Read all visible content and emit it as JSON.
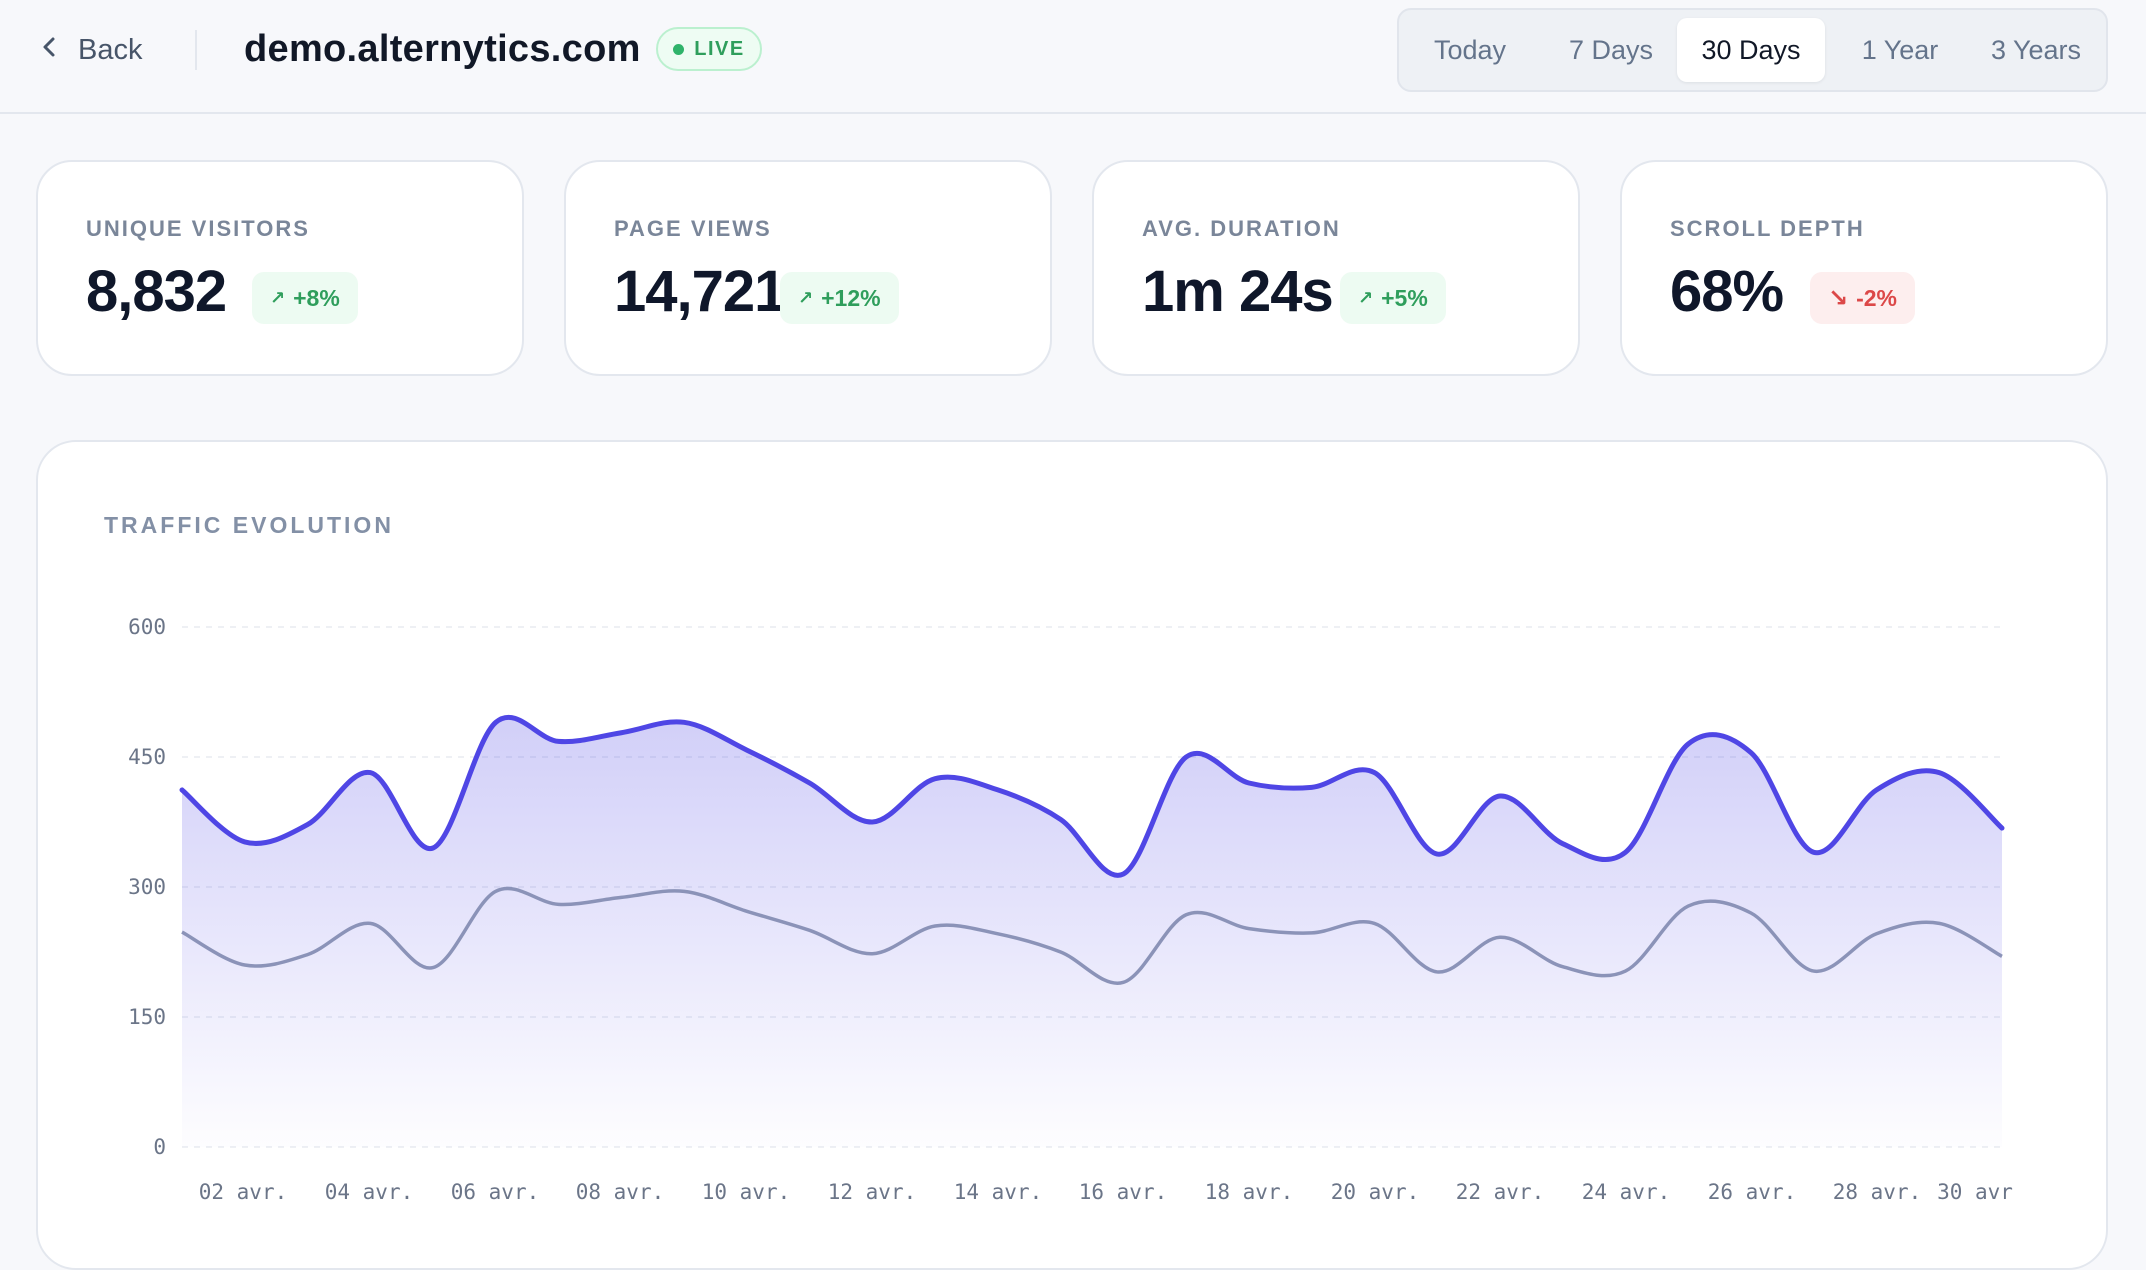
{
  "header": {
    "back_label": "Back",
    "site": "demo.alternytics.com",
    "live_label": "LIVE",
    "ranges": [
      "Today",
      "7 Days",
      "30 Days",
      "1 Year",
      "3 Years"
    ],
    "active_range": "30 Days"
  },
  "stats": [
    {
      "label": "UNIQUE VISITORS",
      "value": "8,832",
      "change": "+8%",
      "trend": "up"
    },
    {
      "label": "PAGE VIEWS",
      "value": "14,721",
      "change": "+12%",
      "trend": "up"
    },
    {
      "label": "AVG. DURATION",
      "value": "1m 24s",
      "change": "+5%",
      "trend": "up"
    },
    {
      "label": "SCROLL DEPTH",
      "value": "68%",
      "change": "-2%",
      "trend": "down"
    }
  ],
  "colors": {
    "accent": "#4f46e5",
    "secondary_line": "#8b93b8",
    "up": "#2f9e5c",
    "down": "#dc4848"
  },
  "icons": {
    "back": "chevron-left-icon",
    "trend_up": "arrow-up-right-icon",
    "trend_down": "arrow-down-right-icon"
  },
  "chart_data": {
    "type": "area",
    "title": "TRAFFIC EVOLUTION",
    "ylim": [
      0,
      600
    ],
    "yticks": [
      0,
      150,
      300,
      450,
      600
    ],
    "grid": true,
    "x_labels": [
      "02 avr.",
      "04 avr.",
      "06 avr.",
      "08 avr.",
      "10 avr.",
      "12 avr.",
      "14 avr.",
      "16 avr.",
      "18 avr.",
      "20 avr.",
      "22 avr.",
      "24 avr.",
      "26 avr.",
      "28 avr.",
      "30 avr"
    ],
    "x": [
      "01 avr.",
      "02 avr.",
      "03 avr.",
      "04 avr.",
      "05 avr.",
      "06 avr.",
      "07 avr.",
      "08 avr.",
      "09 avr.",
      "10 avr.",
      "11 avr.",
      "12 avr.",
      "13 avr.",
      "14 avr.",
      "15 avr.",
      "16 avr.",
      "17 avr.",
      "18 avr.",
      "19 avr.",
      "20 avr.",
      "21 avr.",
      "22 avr.",
      "23 avr.",
      "24 avr.",
      "25 avr.",
      "26 avr.",
      "27 avr.",
      "28 avr.",
      "29 avr.",
      "30 avr"
    ],
    "series": [
      {
        "values": [
          412,
          352,
          372,
          432,
          345,
          490,
          468,
          478,
          490,
          458,
          420,
          375,
          425,
          412,
          378,
          315,
          450,
          420,
          415,
          432,
          338,
          405,
          350,
          340,
          465,
          455,
          340,
          412,
          432,
          368
        ]
      },
      {
        "values": [
          248,
          210,
          222,
          258,
          207,
          295,
          280,
          288,
          295,
          272,
          250,
          223,
          255,
          246,
          225,
          190,
          268,
          252,
          247,
          258,
          202,
          242,
          208,
          203,
          278,
          270,
          203,
          246,
          258,
          220
        ]
      }
    ]
  }
}
